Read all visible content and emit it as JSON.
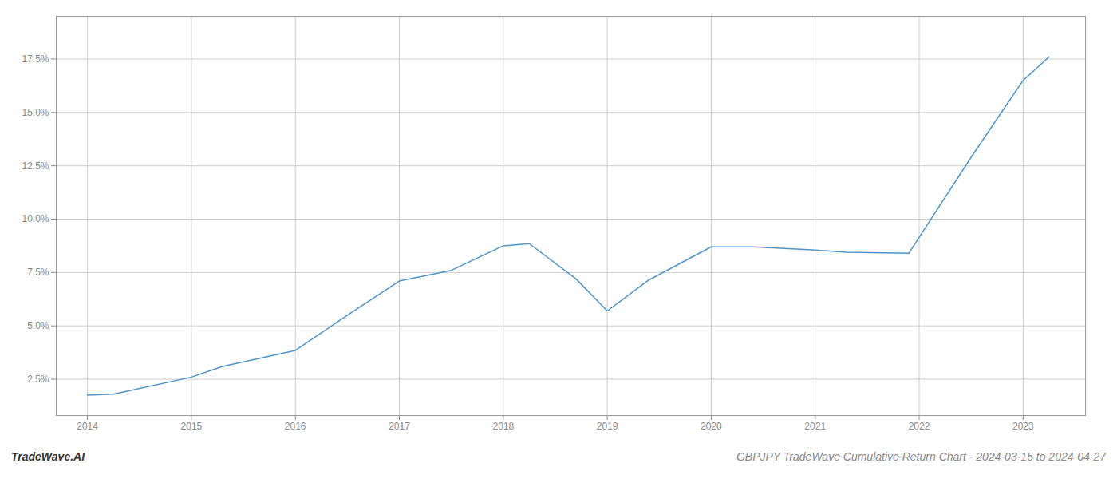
{
  "chart_data": {
    "type": "line",
    "title": "GBPJPY TradeWave Cumulative Return Chart - 2024-03-15 to 2024-04-27",
    "annotations": [
      "TradeWave.AI"
    ],
    "x": [
      2014,
      2014.25,
      2015,
      2015.3,
      2016,
      2016.5,
      2017,
      2017.5,
      2018,
      2018.25,
      2018.7,
      2019,
      2019.4,
      2020,
      2020.4,
      2021,
      2021.3,
      2021.9,
      2022.5,
      2023,
      2023.25
    ],
    "values": [
      1.75,
      1.8,
      2.6,
      3.1,
      3.85,
      5.5,
      7.1,
      7.6,
      8.75,
      8.85,
      7.2,
      5.7,
      7.15,
      8.7,
      8.7,
      8.55,
      8.45,
      8.4,
      12.9,
      16.5,
      17.6
    ],
    "color": "#4d94c8",
    "xlim": [
      2013.7,
      2023.6
    ],
    "ylim": [
      0.8,
      19.5
    ],
    "xticks": [
      2014,
      2015,
      2016,
      2017,
      2018,
      2019,
      2020,
      2021,
      2022,
      2023
    ],
    "yticks": [
      {
        "value": 2.5,
        "label": "2.5%"
      },
      {
        "value": 5.0,
        "label": "5.0%"
      },
      {
        "value": 7.5,
        "label": "7.5%"
      },
      {
        "value": 10.0,
        "label": "10.0%"
      },
      {
        "value": 12.5,
        "label": "12.5%"
      },
      {
        "value": 15.0,
        "label": "15.0%"
      },
      {
        "value": 17.5,
        "label": "17.5%"
      }
    ],
    "grid": true
  }
}
